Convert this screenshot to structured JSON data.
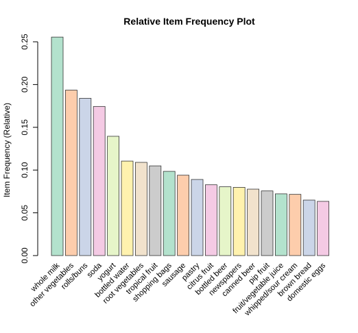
{
  "chart_data": {
    "type": "bar",
    "title": "Relative Item Frequency Plot",
    "xlabel": "",
    "ylabel": "Item Frequency (Relative)",
    "ylim": [
      0,
      0.25
    ],
    "yticks": [
      "0.00",
      "0.05",
      "0.10",
      "0.15",
      "0.20",
      "0.25"
    ],
    "grid": false,
    "categories": [
      "whole milk",
      "other vegetables",
      "rolls/buns",
      "soda",
      "yogurt",
      "bottled water",
      "root vegetables",
      "tropical fruit",
      "shopping bags",
      "sausage",
      "pastry",
      "citrus fruit",
      "bottled beer",
      "newspapers",
      "canned beer",
      "pip fruit",
      "fruit/vegetable juice",
      "whipped/sour cream",
      "brown bread",
      "domestic eggs"
    ],
    "values": [
      0.2555,
      0.1935,
      0.1839,
      0.1744,
      0.1395,
      0.1105,
      0.109,
      0.1049,
      0.0985,
      0.094,
      0.089,
      0.0828,
      0.0805,
      0.0798,
      0.0777,
      0.0756,
      0.0722,
      0.0716,
      0.0649,
      0.0634
    ],
    "colors": [
      "#b3e2cd",
      "#fdcdac",
      "#cbd5e8",
      "#f4cae4",
      "#e6f5c9",
      "#fff2ae",
      "#f1e2cc",
      "#cccccc"
    ]
  }
}
